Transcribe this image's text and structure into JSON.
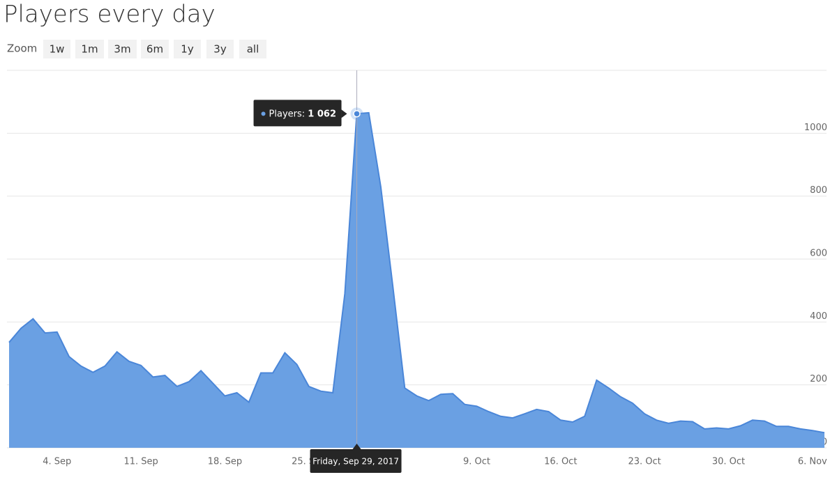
{
  "header": {
    "title": "Players every day"
  },
  "zoom": {
    "label": "Zoom",
    "options": [
      "1w",
      "1m",
      "3m",
      "6m",
      "1y",
      "3y",
      "all"
    ]
  },
  "chart_data": {
    "type": "area",
    "x": [
      "2017-08-31",
      "2017-09-01",
      "2017-09-02",
      "2017-09-03",
      "2017-09-04",
      "2017-09-05",
      "2017-09-06",
      "2017-09-07",
      "2017-09-08",
      "2017-09-09",
      "2017-09-10",
      "2017-09-11",
      "2017-09-12",
      "2017-09-13",
      "2017-09-14",
      "2017-09-15",
      "2017-09-16",
      "2017-09-17",
      "2017-09-18",
      "2017-09-19",
      "2017-09-20",
      "2017-09-21",
      "2017-09-22",
      "2017-09-23",
      "2017-09-24",
      "2017-09-25",
      "2017-09-26",
      "2017-09-27",
      "2017-09-28",
      "2017-09-29",
      "2017-09-30",
      "2017-10-01",
      "2017-10-02",
      "2017-10-03",
      "2017-10-04",
      "2017-10-05",
      "2017-10-06",
      "2017-10-07",
      "2017-10-08",
      "2017-10-09",
      "2017-10-10",
      "2017-10-11",
      "2017-10-12",
      "2017-10-13",
      "2017-10-14",
      "2017-10-15",
      "2017-10-16",
      "2017-10-17",
      "2017-10-18",
      "2017-10-19",
      "2017-10-20",
      "2017-10-21",
      "2017-10-22",
      "2017-10-23",
      "2017-10-24",
      "2017-10-25",
      "2017-10-26",
      "2017-10-27",
      "2017-10-28",
      "2017-10-29",
      "2017-10-30",
      "2017-10-31",
      "2017-11-01",
      "2017-11-02",
      "2017-11-03",
      "2017-11-04",
      "2017-11-05",
      "2017-11-06",
      "2017-11-07"
    ],
    "series": [
      {
        "name": "Players",
        "color": "#6aa0e3",
        "values": [
          335,
          380,
          410,
          365,
          368,
          290,
          260,
          240,
          260,
          305,
          275,
          262,
          225,
          230,
          195,
          210,
          245,
          205,
          165,
          175,
          145,
          238,
          238,
          302,
          265,
          195,
          180,
          175,
          490,
          1062,
          1065,
          830,
          515,
          190,
          165,
          150,
          170,
          172,
          138,
          132,
          115,
          100,
          95,
          108,
          122,
          115,
          88,
          82,
          100,
          215,
          190,
          162,
          142,
          108,
          88,
          78,
          85,
          83,
          60,
          63,
          60,
          70,
          88,
          85,
          68,
          68,
          60,
          55,
          48
        ]
      }
    ],
    "xlim": [
      "2017-08-31",
      "2017-11-07"
    ],
    "xticks": [
      {
        "value": "2017-09-04",
        "label": "4. Sep"
      },
      {
        "value": "2017-09-11",
        "label": "11. Sep"
      },
      {
        "value": "2017-09-18",
        "label": "18. Sep"
      },
      {
        "value": "2017-09-25",
        "label": "25. Sep"
      },
      {
        "value": "2017-10-09",
        "label": "9. Oct"
      },
      {
        "value": "2017-10-16",
        "label": "16. Oct"
      },
      {
        "value": "2017-10-23",
        "label": "23. Oct"
      },
      {
        "value": "2017-10-30",
        "label": "30. Oct"
      },
      {
        "value": "2017-11-06",
        "label": "6. Nov"
      }
    ],
    "ylim": [
      0,
      1200
    ],
    "yticks": [
      0,
      200,
      400,
      600,
      800,
      1000
    ],
    "grid": true,
    "tooltip": {
      "x": "2017-09-29",
      "x_label": "Friday, Sep 29, 2017",
      "value_label": "1 062"
    }
  }
}
